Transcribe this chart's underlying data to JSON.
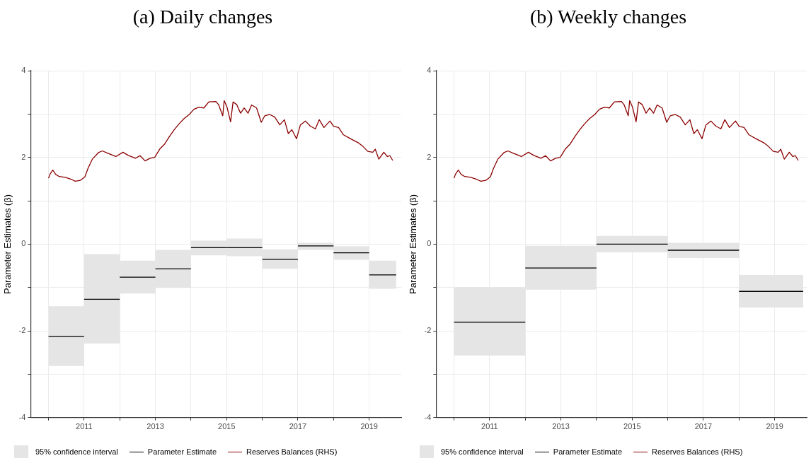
{
  "chart_data": [
    {
      "type": "line",
      "title": "(a) Daily changes",
      "ylabel": "Parameter Estimates (β)",
      "xlim": [
        2009.5,
        2019.9
      ],
      "xticks": [
        {
          "value": 2010,
          "label": null
        },
        2011,
        {
          "value": 2012,
          "label": null
        },
        2013,
        {
          "value": 2014,
          "label": null
        },
        2015,
        {
          "value": 2016,
          "label": null
        },
        2017,
        {
          "value": 2018,
          "label": null
        },
        2019
      ],
      "ylim": [
        -4,
        4
      ],
      "yticks": [
        -4,
        {
          "value": -3,
          "label": null
        },
        -2,
        {
          "value": -1,
          "label": null
        },
        0,
        {
          "value": 1,
          "label": null
        },
        2,
        {
          "value": 3,
          "label": null
        },
        4
      ],
      "grid": true,
      "legend": "bottom",
      "annotations": [
        "95% confidence interval"
      ],
      "series": [
        {
          "name": "Parameter Estimate",
          "color": "#000000",
          "x": [
            2010,
            2011,
            2011,
            2012,
            2012,
            2013,
            2013,
            2014,
            2014,
            2015,
            2015,
            2016,
            2016,
            2017,
            2017,
            2018,
            2018,
            2019,
            2019,
            2019.76
          ],
          "values": [
            -2.13,
            -2.13,
            -1.27,
            -1.27,
            -0.76,
            -0.76,
            -0.57,
            -0.57,
            -0.08,
            -0.08,
            -0.08,
            -0.08,
            -0.35,
            -0.35,
            -0.04,
            -0.04,
            -0.2,
            -0.2,
            -0.71,
            -0.71
          ],
          "lower": [
            -2.81,
            -2.81,
            -2.29,
            -2.29,
            -1.14,
            -1.14,
            -1.01,
            -1.01,
            -0.26,
            -0.26,
            -0.28,
            -0.28,
            -0.57,
            -0.57,
            -0.13,
            -0.13,
            -0.36,
            -0.36,
            -1.03,
            -1.03
          ],
          "upper": [
            -1.43,
            -1.43,
            -0.23,
            -0.23,
            -0.38,
            -0.38,
            -0.13,
            -0.13,
            0.08,
            0.08,
            0.13,
            0.13,
            -0.12,
            -0.12,
            0.03,
            0.03,
            -0.05,
            -0.05,
            -0.38,
            -0.38
          ]
        },
        {
          "name": "Reserves Balances (RHS)",
          "color": "#8b0000",
          "x": [
            2010.0,
            2010.04,
            2010.12,
            2010.2,
            2010.3,
            2010.47,
            2010.65,
            2010.75,
            2010.89,
            2011.02,
            2011.11,
            2011.23,
            2011.4,
            2011.51,
            2011.68,
            2011.89,
            2012.09,
            2012.23,
            2012.44,
            2012.57,
            2012.71,
            2012.85,
            2012.98,
            2013.12,
            2013.26,
            2013.4,
            2013.53,
            2013.67,
            2013.81,
            2013.95,
            2014.08,
            2014.22,
            2014.36,
            2014.5,
            2014.7,
            2014.77,
            2014.89,
            2014.93,
            2015.01,
            2015.11,
            2015.18,
            2015.28,
            2015.39,
            2015.49,
            2015.6,
            2015.7,
            2015.84,
            2015.97,
            2016.07,
            2016.21,
            2016.35,
            2016.49,
            2016.62,
            2016.73,
            2016.83,
            2016.96,
            2017.07,
            2017.21,
            2017.35,
            2017.49,
            2017.6,
            2017.73,
            2017.9,
            2018.0,
            2018.14,
            2018.28,
            2018.48,
            2018.69,
            2018.83,
            2018.96,
            2019.1,
            2019.17,
            2019.27,
            2019.41,
            2019.51,
            2019.58,
            2019.66
          ],
          "values": [
            1.52,
            1.61,
            1.71,
            1.61,
            1.56,
            1.54,
            1.49,
            1.45,
            1.47,
            1.55,
            1.75,
            1.96,
            2.11,
            2.15,
            2.09,
            2.02,
            2.12,
            2.05,
            1.98,
            2.04,
            1.92,
            1.98,
            2.0,
            2.19,
            2.31,
            2.49,
            2.64,
            2.78,
            2.9,
            2.99,
            3.11,
            3.16,
            3.14,
            3.28,
            3.29,
            3.22,
            2.96,
            3.31,
            3.16,
            2.82,
            3.28,
            3.22,
            3.02,
            3.14,
            3.02,
            3.21,
            3.14,
            2.81,
            2.96,
            2.99,
            2.93,
            2.75,
            2.87,
            2.55,
            2.64,
            2.43,
            2.75,
            2.84,
            2.72,
            2.66,
            2.87,
            2.69,
            2.84,
            2.72,
            2.69,
            2.52,
            2.43,
            2.34,
            2.25,
            2.14,
            2.12,
            2.19,
            1.96,
            2.12,
            2.02,
            2.04,
            1.93
          ]
        }
      ]
    },
    {
      "type": "line",
      "title": "(b) Weekly changes",
      "ylabel": "Parameter Estimates (β)",
      "xlim": [
        2009.5,
        2019.9
      ],
      "xticks": [
        {
          "value": 2010,
          "label": null
        },
        2011,
        {
          "value": 2012,
          "label": null
        },
        2013,
        {
          "value": 2014,
          "label": null
        },
        2015,
        {
          "value": 2016,
          "label": null
        },
        2017,
        {
          "value": 2018,
          "label": null
        },
        2019
      ],
      "ylim": [
        -4,
        4
      ],
      "yticks": [
        -4,
        {
          "value": -3,
          "label": null
        },
        -2,
        {
          "value": -1,
          "label": null
        },
        0,
        {
          "value": 1,
          "label": null
        },
        2,
        {
          "value": 3,
          "label": null
        },
        4
      ],
      "grid": true,
      "legend": "bottom",
      "annotations": [
        "95% confidence interval"
      ],
      "series": [
        {
          "name": "Parameter Estimate",
          "color": "#000000",
          "x": [
            2010,
            2012,
            2012,
            2014,
            2014,
            2016,
            2016,
            2018,
            2018,
            2019.8
          ],
          "values": [
            -1.8,
            -1.8,
            -0.55,
            -0.55,
            0.0,
            0.0,
            -0.14,
            -0.14,
            -1.09,
            -1.09
          ],
          "lower": [
            -2.57,
            -2.57,
            -1.05,
            -1.05,
            -0.19,
            -0.19,
            -0.32,
            -0.32,
            -1.46,
            -1.46
          ],
          "upper": [
            -0.99,
            -0.99,
            -0.04,
            -0.04,
            0.19,
            0.19,
            0.03,
            0.03,
            -0.71,
            -0.71
          ]
        },
        {
          "name": "Reserves Balances (RHS)",
          "color": "#8b0000",
          "x": [
            2010.0,
            2010.04,
            2010.12,
            2010.2,
            2010.3,
            2010.47,
            2010.65,
            2010.75,
            2010.89,
            2011.02,
            2011.11,
            2011.23,
            2011.4,
            2011.51,
            2011.68,
            2011.89,
            2012.09,
            2012.23,
            2012.44,
            2012.57,
            2012.71,
            2012.85,
            2012.98,
            2013.12,
            2013.26,
            2013.4,
            2013.53,
            2013.67,
            2013.81,
            2013.95,
            2014.08,
            2014.22,
            2014.36,
            2014.5,
            2014.7,
            2014.77,
            2014.89,
            2014.93,
            2015.01,
            2015.11,
            2015.18,
            2015.28,
            2015.39,
            2015.49,
            2015.6,
            2015.7,
            2015.84,
            2015.97,
            2016.07,
            2016.21,
            2016.35,
            2016.49,
            2016.62,
            2016.73,
            2016.83,
            2016.96,
            2017.07,
            2017.21,
            2017.35,
            2017.49,
            2017.6,
            2017.73,
            2017.9,
            2018.0,
            2018.14,
            2018.28,
            2018.48,
            2018.69,
            2018.83,
            2018.96,
            2019.1,
            2019.17,
            2019.27,
            2019.41,
            2019.51,
            2019.58,
            2019.66
          ],
          "values": [
            1.52,
            1.61,
            1.71,
            1.61,
            1.56,
            1.54,
            1.49,
            1.45,
            1.47,
            1.55,
            1.75,
            1.96,
            2.11,
            2.15,
            2.09,
            2.02,
            2.12,
            2.05,
            1.98,
            2.04,
            1.92,
            1.98,
            2.0,
            2.19,
            2.31,
            2.49,
            2.64,
            2.78,
            2.9,
            2.99,
            3.11,
            3.16,
            3.14,
            3.28,
            3.29,
            3.22,
            2.96,
            3.31,
            3.16,
            2.82,
            3.28,
            3.22,
            3.02,
            3.14,
            3.02,
            3.21,
            3.14,
            2.81,
            2.96,
            2.99,
            2.93,
            2.75,
            2.87,
            2.55,
            2.64,
            2.43,
            2.75,
            2.84,
            2.72,
            2.66,
            2.87,
            2.69,
            2.84,
            2.72,
            2.69,
            2.52,
            2.43,
            2.34,
            2.25,
            2.14,
            2.12,
            2.19,
            1.96,
            2.12,
            2.02,
            2.04,
            1.93
          ]
        }
      ]
    }
  ]
}
